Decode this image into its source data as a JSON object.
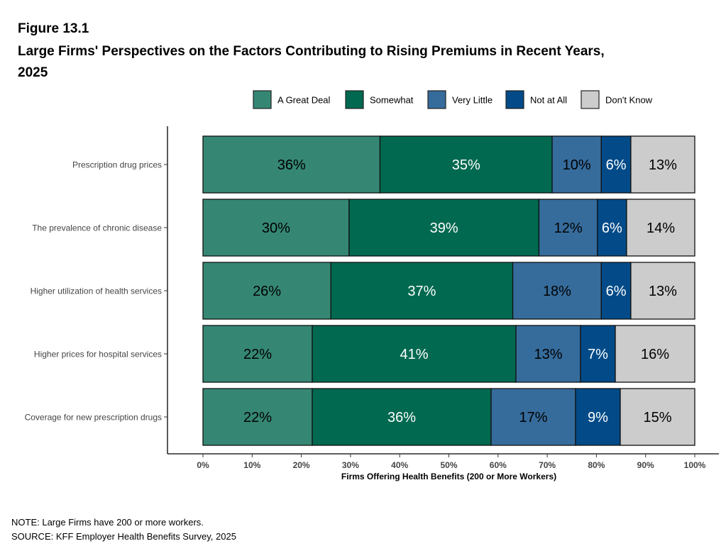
{
  "figure_label": "Figure 13.1",
  "title_line1": "Large Firms' Perspectives on the Factors Contributing to Rising Premiums in Recent Years,",
  "title_line2": "2025",
  "note": "NOTE: Large Firms have 200 or more workers.",
  "source": "SOURCE: KFF Employer Health Benefits Survey, 2025",
  "chart_data": {
    "type": "bar",
    "orientation": "horizontal",
    "stacked": true,
    "xlabel": "Firms Offering Health Benefits (200 or More Workers)",
    "xlim": [
      0,
      100
    ],
    "x_ticks": [
      "0%",
      "10%",
      "20%",
      "30%",
      "40%",
      "50%",
      "60%",
      "70%",
      "80%",
      "90%",
      "100%"
    ],
    "legend_position": "top",
    "grid": false,
    "categories": [
      "Prescription drug prices",
      "The prevalence of chronic disease",
      "Higher utilization of health services",
      "Higher prices for hospital services",
      "Coverage for new prescription drugs"
    ],
    "series": [
      {
        "name": "A Great Deal",
        "color": "#358774",
        "label_color": "#000000",
        "values": [
          36,
          30,
          26,
          22,
          22
        ]
      },
      {
        "name": "Somewhat",
        "color": "#006950",
        "label_color": "#ffffff",
        "values": [
          35,
          39,
          37,
          41,
          36
        ]
      },
      {
        "name": "Very Little",
        "color": "#366C9C",
        "label_color": "#000000",
        "values": [
          10,
          12,
          18,
          13,
          17
        ]
      },
      {
        "name": "Not at All",
        "color": "#024B88",
        "label_color": "#ffffff",
        "values": [
          6,
          6,
          6,
          7,
          9
        ]
      },
      {
        "name": "Don't Know",
        "color": "#CCCCCC",
        "label_color": "#000000",
        "values": [
          13,
          14,
          13,
          16,
          15
        ]
      }
    ]
  }
}
